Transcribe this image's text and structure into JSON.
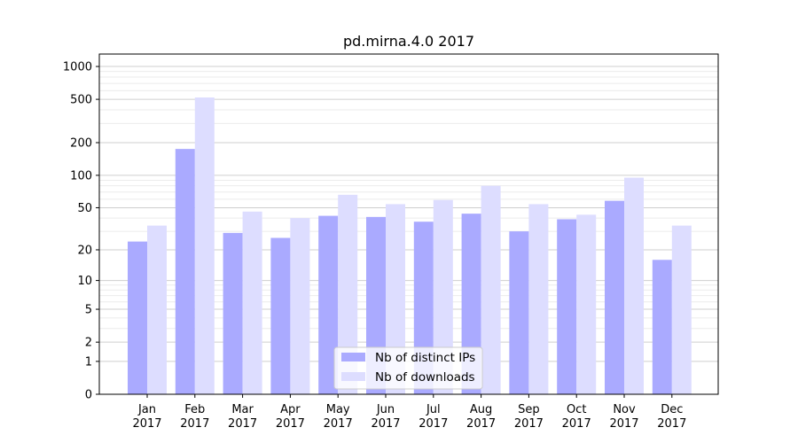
{
  "chart_data": {
    "type": "bar",
    "title": "pd.mirna.4.0 2017",
    "xlabel": "",
    "ylabel": "",
    "yscale": "symlog",
    "ylim": [
      0,
      1300
    ],
    "yticks": [
      0,
      1,
      2,
      5,
      10,
      20,
      50,
      100,
      200,
      500,
      1000
    ],
    "ytick_labels": [
      "0",
      "1",
      "2",
      "5",
      "10",
      "20",
      "50",
      "100",
      "200",
      "500",
      "1000"
    ],
    "grid": true,
    "legend_position": "bottom-center",
    "categories": [
      {
        "month": "Jan",
        "year": "2017"
      },
      {
        "month": "Feb",
        "year": "2017"
      },
      {
        "month": "Mar",
        "year": "2017"
      },
      {
        "month": "Apr",
        "year": "2017"
      },
      {
        "month": "May",
        "year": "2017"
      },
      {
        "month": "Jun",
        "year": "2017"
      },
      {
        "month": "Jul",
        "year": "2017"
      },
      {
        "month": "Aug",
        "year": "2017"
      },
      {
        "month": "Sep",
        "year": "2017"
      },
      {
        "month": "Oct",
        "year": "2017"
      },
      {
        "month": "Nov",
        "year": "2017"
      },
      {
        "month": "Dec",
        "year": "2017"
      }
    ],
    "series": [
      {
        "name": "Nb of distinct IPs",
        "color": "#aaaaff",
        "values": [
          24,
          175,
          29,
          26,
          42,
          41,
          37,
          44,
          30,
          39,
          58,
          16
        ]
      },
      {
        "name": "Nb of downloads",
        "color": "#ddddff",
        "values": [
          34,
          520,
          46,
          40,
          66,
          54,
          59,
          80,
          54,
          43,
          95,
          34
        ]
      }
    ]
  }
}
